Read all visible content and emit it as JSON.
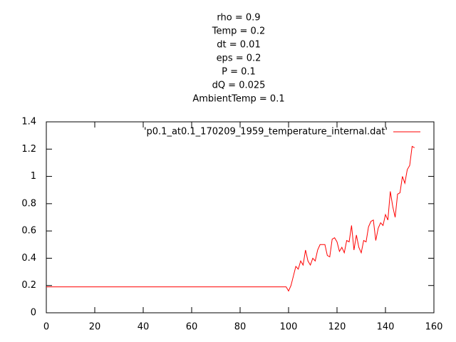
{
  "chart_data": {
    "type": "line",
    "title": [
      "rho = 0.9",
      "Temp = 0.2",
      "dt = 0.01",
      "eps = 0.2",
      "P = 0.1",
      "dQ = 0.025",
      "AmbientTemp = 0.1"
    ],
    "x": [
      0,
      99,
      100,
      101,
      102,
      103,
      104,
      105,
      106,
      107,
      108,
      109,
      110,
      111,
      112,
      113,
      114,
      115,
      116,
      117,
      118,
      119,
      120,
      121,
      122,
      123,
      124,
      125,
      126,
      127,
      128,
      129,
      130,
      131,
      132,
      133,
      134,
      135,
      136,
      137,
      138,
      139,
      140,
      141,
      142,
      143,
      144,
      145,
      146,
      147,
      148,
      149,
      150,
      151,
      152
    ],
    "series": [
      {
        "name": "'p0.1_at0.1_170209_1959_temperature_internal.dat'",
        "color": "#ff0000",
        "values": [
          0.19,
          0.19,
          0.16,
          0.2,
          0.27,
          0.34,
          0.32,
          0.38,
          0.35,
          0.46,
          0.38,
          0.35,
          0.4,
          0.38,
          0.46,
          0.5,
          0.5,
          0.5,
          0.42,
          0.41,
          0.54,
          0.55,
          0.52,
          0.45,
          0.48,
          0.44,
          0.53,
          0.52,
          0.64,
          0.46,
          0.57,
          0.48,
          0.44,
          0.53,
          0.52,
          0.63,
          0.67,
          0.68,
          0.53,
          0.62,
          0.66,
          0.64,
          0.72,
          0.68,
          0.89,
          0.78,
          0.7,
          0.87,
          0.88,
          1.0,
          0.95,
          1.05,
          1.08,
          1.22,
          1.21
        ]
      }
    ],
    "xlim": [
      0,
      160
    ],
    "xticks": [
      0,
      20,
      40,
      60,
      80,
      100,
      120,
      140,
      160
    ],
    "ylim": [
      0,
      1.4
    ],
    "yticks": [
      0,
      0.2,
      0.4,
      0.6,
      0.8,
      1,
      1.2,
      1.4
    ],
    "grid": false,
    "legend": "top-right"
  }
}
